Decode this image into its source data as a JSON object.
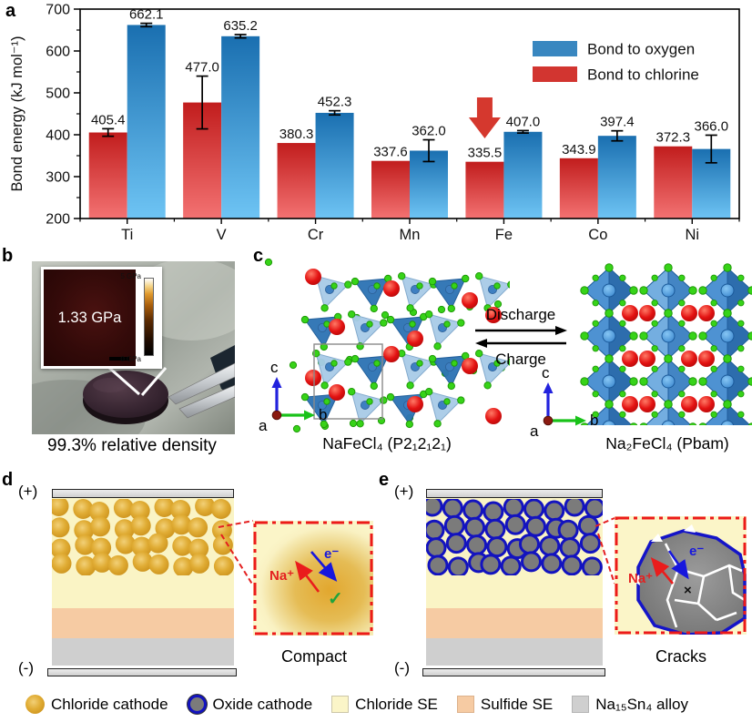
{
  "panel_labels": {
    "a": "a",
    "b": "b",
    "c": "c",
    "d": "d",
    "e": "e"
  },
  "chart_data": {
    "type": "bar",
    "title": "",
    "xlabel": "",
    "ylabel": "Bond energy (kJ mol⁻¹)",
    "ylim": [
      200,
      700
    ],
    "yticks": [
      200,
      300,
      400,
      500,
      600,
      700
    ],
    "grid": false,
    "categories": [
      "Ti",
      "V",
      "Cr",
      "Mn",
      "Fe",
      "Co",
      "Ni"
    ],
    "series": [
      {
        "name": "Bond to chlorine",
        "values": [
          405.4,
          477.0,
          380.3,
          337.6,
          335.5,
          343.9,
          372.3
        ],
        "errors": [
          9,
          63,
          0,
          0,
          0,
          0,
          0
        ],
        "color_top": "#C11D1D",
        "color_bottom": "#F37272"
      },
      {
        "name": "Bond to oxygen",
        "values": [
          662.1,
          635.2,
          452.3,
          362.0,
          407.0,
          397.4,
          366.0
        ],
        "errors": [
          4,
          4,
          5,
          26,
          3,
          12,
          33
        ],
        "color_top": "#1A6FB0",
        "color_bottom": "#6EC4F4"
      }
    ],
    "legend": [
      {
        "label": "Bond to oxygen",
        "color": "#3987C0"
      },
      {
        "label": "Bond to chlorine",
        "color": "#D23530"
      }
    ],
    "legend_position": "upper right",
    "annotation": {
      "type": "down-arrow",
      "category": "Fe",
      "color": "#D5382E"
    }
  },
  "panel_b": {
    "inset_value": "1.33 GPa",
    "scale_top": "5 GPa",
    "scale_bottom": "0 GPa",
    "caption": "99.3% relative density"
  },
  "panel_c": {
    "discharge": "Discharge",
    "charge": "Charge",
    "left_caption": "NaFeCl₄ (P2₁2₁2₁)",
    "right_caption": "Na₂FeCl₄ (Pbam)",
    "axis_a": "a",
    "axis_b": "b",
    "axis_c": "c"
  },
  "panel_d": {
    "positive": "(+)",
    "negative": "(-)",
    "na_ion": "Na⁺",
    "electron": "e⁻",
    "status_mark": "✓",
    "caption": "Compact"
  },
  "panel_e": {
    "positive": "(+)",
    "negative": "(-)",
    "na_ion": "Na⁺",
    "electron": "e⁻",
    "status_mark": "×",
    "caption": "Cracks"
  },
  "bottom_legend": {
    "items": [
      {
        "label": "Chloride cathode",
        "swatch": "gold-circle"
      },
      {
        "label": "Oxide cathode",
        "swatch": "gray-circle-blue-ring"
      },
      {
        "label": "Chloride SE",
        "swatch": "#FBF5C8"
      },
      {
        "label": "Sulfide SE",
        "swatch": "#F6CBA3"
      },
      {
        "label": "Na₁₅Sn₄ alloy",
        "swatch": "#CFCFCF"
      }
    ]
  },
  "colors": {
    "chloride_se": "#FAF4C5",
    "sulfide_se": "#F6CBA3",
    "alloy": "#CFCFCF",
    "electrode": "#DCDCDC",
    "chloride_particle": "#DDA62B",
    "oxide_particle": "#7B7B7B",
    "oxide_ring": "#1313BF",
    "accent_red": "#E42020",
    "accent_blue": "#1717DD",
    "check_green": "#1FA33C"
  }
}
